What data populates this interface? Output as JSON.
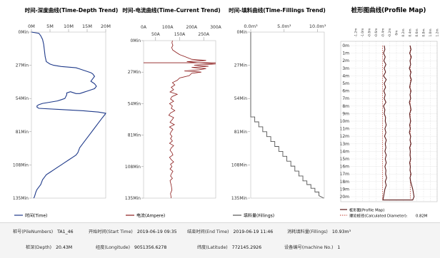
{
  "panels": {
    "depth": {
      "title": "时间-深度曲线(Time-Depth Trend)",
      "x_ticks": [
        "0M",
        "5M",
        "10M",
        "15M",
        "20M"
      ],
      "y_ticks": [
        "0Min",
        "27Min",
        "54Min",
        "81Min",
        "108Min",
        "135Min"
      ],
      "legend": "时间(Time)",
      "line_color": "#1f3a8a"
    },
    "current": {
      "title": "时间-电流曲线(Time-Current Trend)",
      "x_ticks_top": [
        "0A",
        "100A",
        "200A",
        "300A"
      ],
      "x_ticks_bottom": [
        "50A",
        "150A",
        "250A"
      ],
      "y_ticks": [
        "0Min",
        "27Min",
        "54Min",
        "81Min",
        "108Min",
        "135Min"
      ],
      "legend": "电流(Ampere)",
      "line_color": "#8b1a1a"
    },
    "fillings": {
      "title": "时间-填料曲线(Time-Fillings Trend)",
      "x_ticks": [
        "0.0m³",
        "5.0m³",
        "10.0m³"
      ],
      "y_ticks": [
        "0Min",
        "27Min",
        "54Min",
        "81Min",
        "108Min",
        "135Min"
      ],
      "legend": "填料量(Fillings)",
      "line_color": "#555555"
    },
    "profile": {
      "title": "桩形图曲线(Profile Map)",
      "x_ticks": [
        "-1.2m",
        "-1.0m",
        "-0.8m",
        "-0.6m",
        "-0.4m",
        "-0.2m",
        "0m",
        "0.2m",
        "0.4m",
        "0.6m",
        "0.8m",
        "1.0m",
        "1.2m"
      ],
      "depth_ticks": [
        "0m",
        "1m",
        "2m",
        "3m",
        "4m",
        "5m",
        "6m",
        "7m",
        "8m",
        "9m",
        "10m",
        "11m",
        "12m",
        "13m",
        "14m",
        "15m",
        "16m",
        "17m",
        "18m",
        "19m",
        "20m"
      ],
      "legend_profile": "桩形图(Profile Map)",
      "legend_diameter": "理论桩径(Calculated Diameter):",
      "diameter_value": "0.82M"
    }
  },
  "footer": {
    "pile_label": "桩号(PileNumbers)",
    "pile_value": "TA1_46",
    "start_label": "开始时间(Start Time)",
    "start_value": "2019-06-19 09:35",
    "end_label": "结束时间(End Time)",
    "end_value": "2019-06-19 11:46",
    "consume_label": "消耗填料量(Fillings)",
    "consume_value": "10.93m³",
    "depth_label": "桩深(Depth)",
    "depth_value": "20.43M",
    "lon_label": "经度(Longitude)",
    "lon_value": "9051356.6278",
    "lat_label": "纬度(Latitude)",
    "lat_value": "772145.2926",
    "machine_label": "设备编号(machine No.)",
    "machine_value": "1"
  },
  "chart_data": [
    {
      "type": "line",
      "title": "时间-深度曲线(Time-Depth Trend)",
      "xlabel": "",
      "ylabel": "",
      "x_unit": "M",
      "y_unit": "Min",
      "xlim": [
        0,
        20
      ],
      "ylim": [
        0,
        135
      ],
      "y_inverted": true,
      "series": [
        {
          "name": "时间(Time)",
          "x": [
            0,
            2,
            2.5,
            3,
            3.3,
            3.5,
            3.7,
            4,
            5,
            6,
            8,
            10,
            12,
            13,
            14,
            15,
            16,
            16.5,
            17,
            16.5,
            16,
            16.5,
            17,
            17.5,
            17,
            16,
            15,
            14,
            13,
            12,
            11,
            10.5,
            10,
            9.5,
            9.5,
            9,
            8,
            7,
            5,
            3,
            2,
            1.5,
            1.5,
            2,
            8,
            14,
            18,
            20,
            19.8,
            19,
            18,
            17,
            16,
            15,
            14,
            13,
            12.5,
            12,
            11,
            10,
            9,
            8,
            7,
            6,
            5,
            4,
            3.5,
            3,
            2.5,
            2,
            1.5,
            1.2,
            1,
            0.8,
            0.6
          ],
          "y": [
            0,
            1,
            3,
            6,
            10,
            15,
            20,
            24,
            26,
            27,
            28,
            28.5,
            29,
            30,
            31,
            32,
            33,
            34,
            36,
            38,
            40,
            41,
            42,
            44,
            46,
            47,
            48,
            49,
            50,
            50,
            49,
            48.5,
            49,
            49.5,
            51,
            54,
            55,
            56,
            57,
            58,
            59,
            60,
            61,
            62,
            63,
            64,
            65,
            66,
            67,
            70,
            74,
            78,
            82,
            86,
            90,
            94,
            98,
            100,
            102,
            104,
            106,
            108,
            110,
            112,
            114,
            116,
            118,
            120,
            124,
            126,
            128,
            130,
            132,
            134,
            135
          ]
        }
      ]
    },
    {
      "type": "line",
      "title": "时间-电流曲线(Time-Current Trend)",
      "xlabel": "",
      "ylabel": "",
      "x_unit": "A",
      "y_unit": "Min",
      "xlim": [
        0,
        300
      ],
      "ylim": [
        0,
        135
      ],
      "y_inverted": true,
      "series": [
        {
          "name": "电流(Ampere)",
          "x": [
            120,
            118,
            122,
            117,
            121,
            135,
            150,
            175,
            200,
            260,
            180,
            230,
            300,
            210,
            270,
            200,
            260,
            230,
            170,
            240,
            200,
            190,
            150,
            140,
            120,
            130,
            115,
            125,
            110,
            140,
            118,
            112,
            125,
            108,
            120,
            115,
            130,
            112,
            105,
            125,
            118,
            110,
            128,
            108,
            122,
            115,
            110,
            118,
            112,
            120,
            108,
            125,
            115,
            110,
            118,
            122,
            108,
            115,
            125,
            112,
            118,
            110,
            122,
            116,
            112,
            120,
            110,
            115,
            118,
            112,
            115
          ],
          "y": [
            0,
            2,
            4,
            6,
            8,
            10,
            12,
            14,
            16,
            17,
            18,
            19,
            20,
            21,
            22,
            23,
            24,
            25,
            26,
            27,
            28,
            30,
            32,
            34,
            36,
            38,
            40,
            42,
            44,
            46,
            48,
            50,
            52,
            54,
            56,
            58,
            60,
            62,
            64,
            66,
            68,
            70,
            72,
            74,
            76,
            78,
            80,
            82,
            84,
            86,
            88,
            90,
            92,
            94,
            96,
            98,
            100,
            102,
            104,
            106,
            108,
            110,
            112,
            114,
            116,
            118,
            120,
            124,
            128,
            131,
            135
          ]
        }
      ],
      "reference_line_y": 19
    },
    {
      "type": "line",
      "title": "时间-填料曲线(Time-Fillings Trend)",
      "xlabel": "",
      "ylabel": "",
      "x_unit": "m³",
      "y_unit": "Min",
      "xlim": [
        0,
        11
      ],
      "ylim": [
        0,
        135
      ],
      "y_inverted": true,
      "series": [
        {
          "name": "填料量(Fillings)",
          "x": [
            0,
            0,
            0.6,
            0.6,
            1.2,
            1.2,
            1.8,
            1.8,
            2.4,
            2.4,
            3.0,
            3.0,
            3.6,
            3.6,
            4.2,
            4.2,
            4.8,
            4.8,
            5.4,
            5.4,
            6.0,
            6.0,
            6.6,
            6.6,
            7.2,
            7.2,
            7.8,
            7.8,
            8.4,
            8.4,
            9.0,
            9.0,
            9.6,
            9.6,
            10.2,
            10.2,
            10.93
          ],
          "y": [
            0,
            69,
            69,
            73,
            73,
            77,
            77,
            81,
            81,
            85,
            85,
            89,
            89,
            93,
            93,
            97,
            97,
            101,
            101,
            105,
            105,
            109,
            109,
            113,
            113,
            117,
            117,
            121,
            121,
            124,
            124,
            127,
            127,
            130,
            130,
            133,
            135
          ]
        }
      ]
    },
    {
      "type": "line",
      "title": "桩形图曲线(Profile Map)",
      "xlabel": "",
      "ylabel": "",
      "x_unit": "m",
      "y_unit": "m",
      "xlim": [
        -1.2,
        1.2
      ],
      "ylim": [
        0,
        20.43
      ],
      "y_inverted": true,
      "series": [
        {
          "name": "桩形图(Profile Map)",
          "radius_by_depth": {
            "depth": [
              0,
              0.5,
              1,
              1.5,
              2,
              2.5,
              3,
              3.5,
              4,
              4.5,
              5,
              5.5,
              6,
              6.5,
              7,
              7.5,
              8,
              8.5,
              9,
              9.5,
              10,
              10.5,
              11,
              11.5,
              12,
              12.5,
              13,
              13.5,
              14,
              14.5,
              15,
              15.5,
              16,
              16.5,
              17,
              17.5,
              18,
              18.5,
              19,
              19.5,
              20,
              20.43
            ],
            "left": [
              -0.36,
              -0.34,
              -0.38,
              -0.33,
              -0.37,
              -0.31,
              -0.36,
              -0.32,
              -0.38,
              -0.3,
              -0.36,
              -0.32,
              -0.37,
              -0.33,
              -0.36,
              -0.31,
              -0.38,
              -0.34,
              -0.36,
              -0.32,
              -0.33,
              -0.3,
              -0.34,
              -0.31,
              -0.35,
              -0.3,
              -0.33,
              -0.31,
              -0.34,
              -0.3,
              -0.33,
              -0.3,
              -0.34,
              -0.31,
              -0.32,
              -0.29,
              -0.33,
              -0.3,
              -0.34,
              -0.36,
              -0.38,
              -0.4
            ],
            "right": [
              0.4,
              0.43,
              0.39,
              0.44,
              0.4,
              0.42,
              0.38,
              0.43,
              0.4,
              0.44,
              0.41,
              0.39,
              0.43,
              0.4,
              0.42,
              0.38,
              0.41,
              0.43,
              0.39,
              0.4,
              0.42,
              0.39,
              0.41,
              0.38,
              0.42,
              0.4,
              0.43,
              0.39,
              0.41,
              0.4,
              0.42,
              0.39,
              0.41,
              0.4,
              0.43,
              0.4,
              0.42,
              0.45,
              0.48,
              0.5,
              0.52,
              0.48
            ]
          }
        },
        {
          "name": "理论桩径(Calculated Diameter)",
          "diameter": 0.82
        }
      ]
    }
  ]
}
